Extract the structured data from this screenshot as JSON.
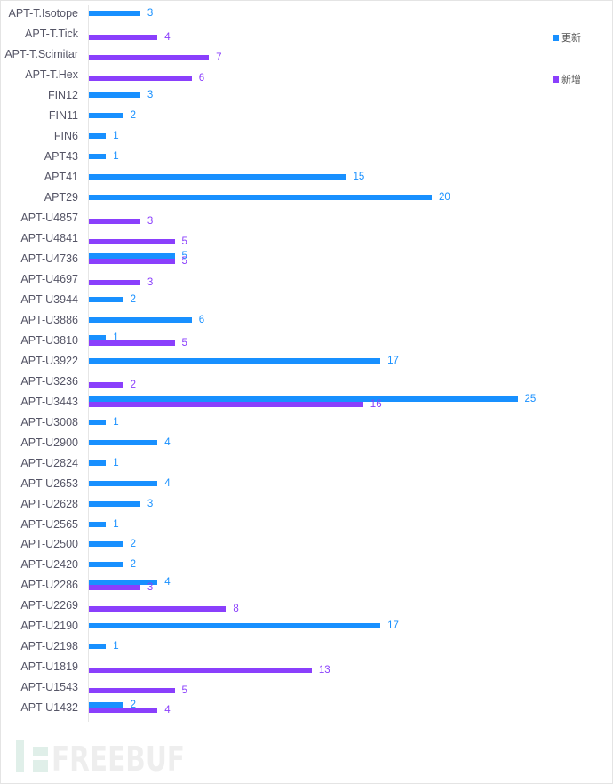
{
  "chart_data": {
    "type": "bar",
    "orientation": "horizontal",
    "title": "",
    "xlabel": "",
    "ylabel": "",
    "grid": false,
    "legend_position": "right",
    "colors": {
      "更新": "#1890ff",
      "新增": "#8a3ffc"
    },
    "categories": [
      "APT-T.Isotope",
      "APT-T.Tick",
      "APT-T.Scimitar",
      "APT-T.Hex",
      "FIN12",
      "FIN11",
      "FIN6",
      "APT43",
      "APT41",
      "APT29",
      "APT-U4857",
      "APT-U4841",
      "APT-U4736",
      "APT-U4697",
      "APT-U3944",
      "APT-U3886",
      "APT-U3810",
      "APT-U3922",
      "APT-U3236",
      "APT-U3443",
      "APT-U3008",
      "APT-U2900",
      "APT-U2824",
      "APT-U2653",
      "APT-U2628",
      "APT-U2565",
      "APT-U2500",
      "APT-U2420",
      "APT-U2286",
      "APT-U2269",
      "APT-U2190",
      "APT-U2198",
      "APT-U1819",
      "APT-U1543",
      "APT-U1432"
    ],
    "series": [
      {
        "name": "更新",
        "values": [
          3,
          null,
          null,
          null,
          3,
          2,
          1,
          1,
          15,
          20,
          null,
          null,
          5,
          null,
          2,
          6,
          1,
          17,
          null,
          25,
          1,
          4,
          1,
          4,
          3,
          1,
          2,
          2,
          4,
          null,
          17,
          1,
          null,
          null,
          2
        ]
      },
      {
        "name": "新增",
        "values": [
          null,
          4,
          7,
          6,
          null,
          null,
          null,
          null,
          null,
          null,
          3,
          5,
          5,
          3,
          null,
          null,
          5,
          null,
          2,
          16,
          null,
          null,
          null,
          null,
          null,
          null,
          null,
          null,
          3,
          8,
          null,
          null,
          13,
          5,
          4
        ]
      }
    ]
  },
  "legend": {
    "items": [
      {
        "label": "更新",
        "color": "#1890ff"
      },
      {
        "label": "新增",
        "color": "#8a3ffc"
      }
    ]
  },
  "watermark": "FREEBUF"
}
